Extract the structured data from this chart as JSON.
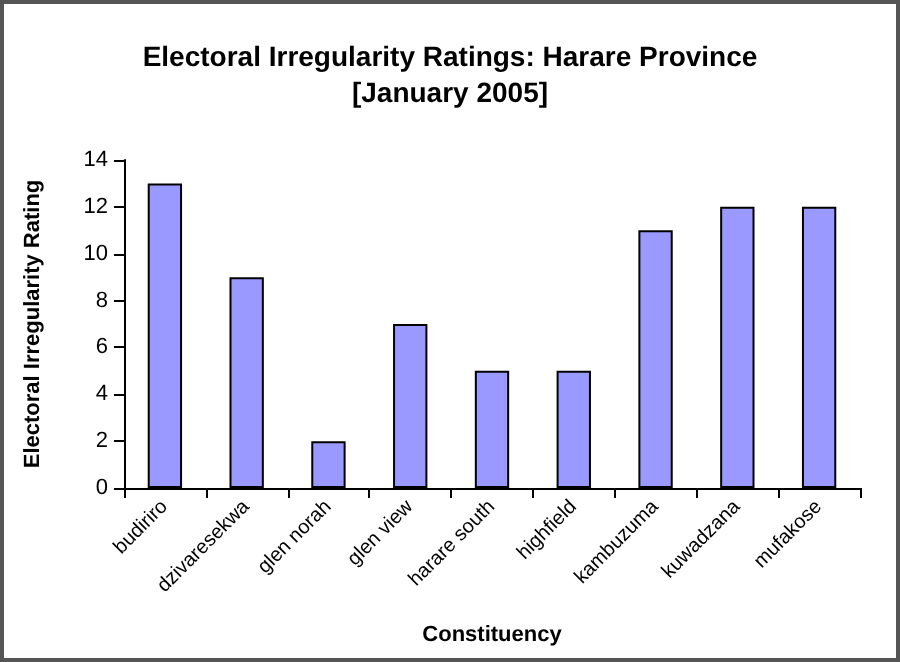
{
  "chart_data": {
    "type": "bar",
    "title": "Electoral Irregularity Ratings: Harare Province\n[January 2005]",
    "xlabel": "Constituency",
    "ylabel": "Electoral Irregularity Rating",
    "categories": [
      "budiriro",
      "dzivaresekwa",
      "glen norah",
      "glen view",
      "harare south",
      "highfield",
      "kambuzuma",
      "kuwadzana",
      "mufakose"
    ],
    "values": [
      13,
      9,
      2,
      7,
      5,
      5,
      11,
      12,
      12
    ],
    "color": "#9999ff",
    "ylim": [
      0,
      14
    ],
    "yticks": [
      0,
      2,
      4,
      6,
      8,
      10,
      12,
      14
    ],
    "grid": false
  }
}
